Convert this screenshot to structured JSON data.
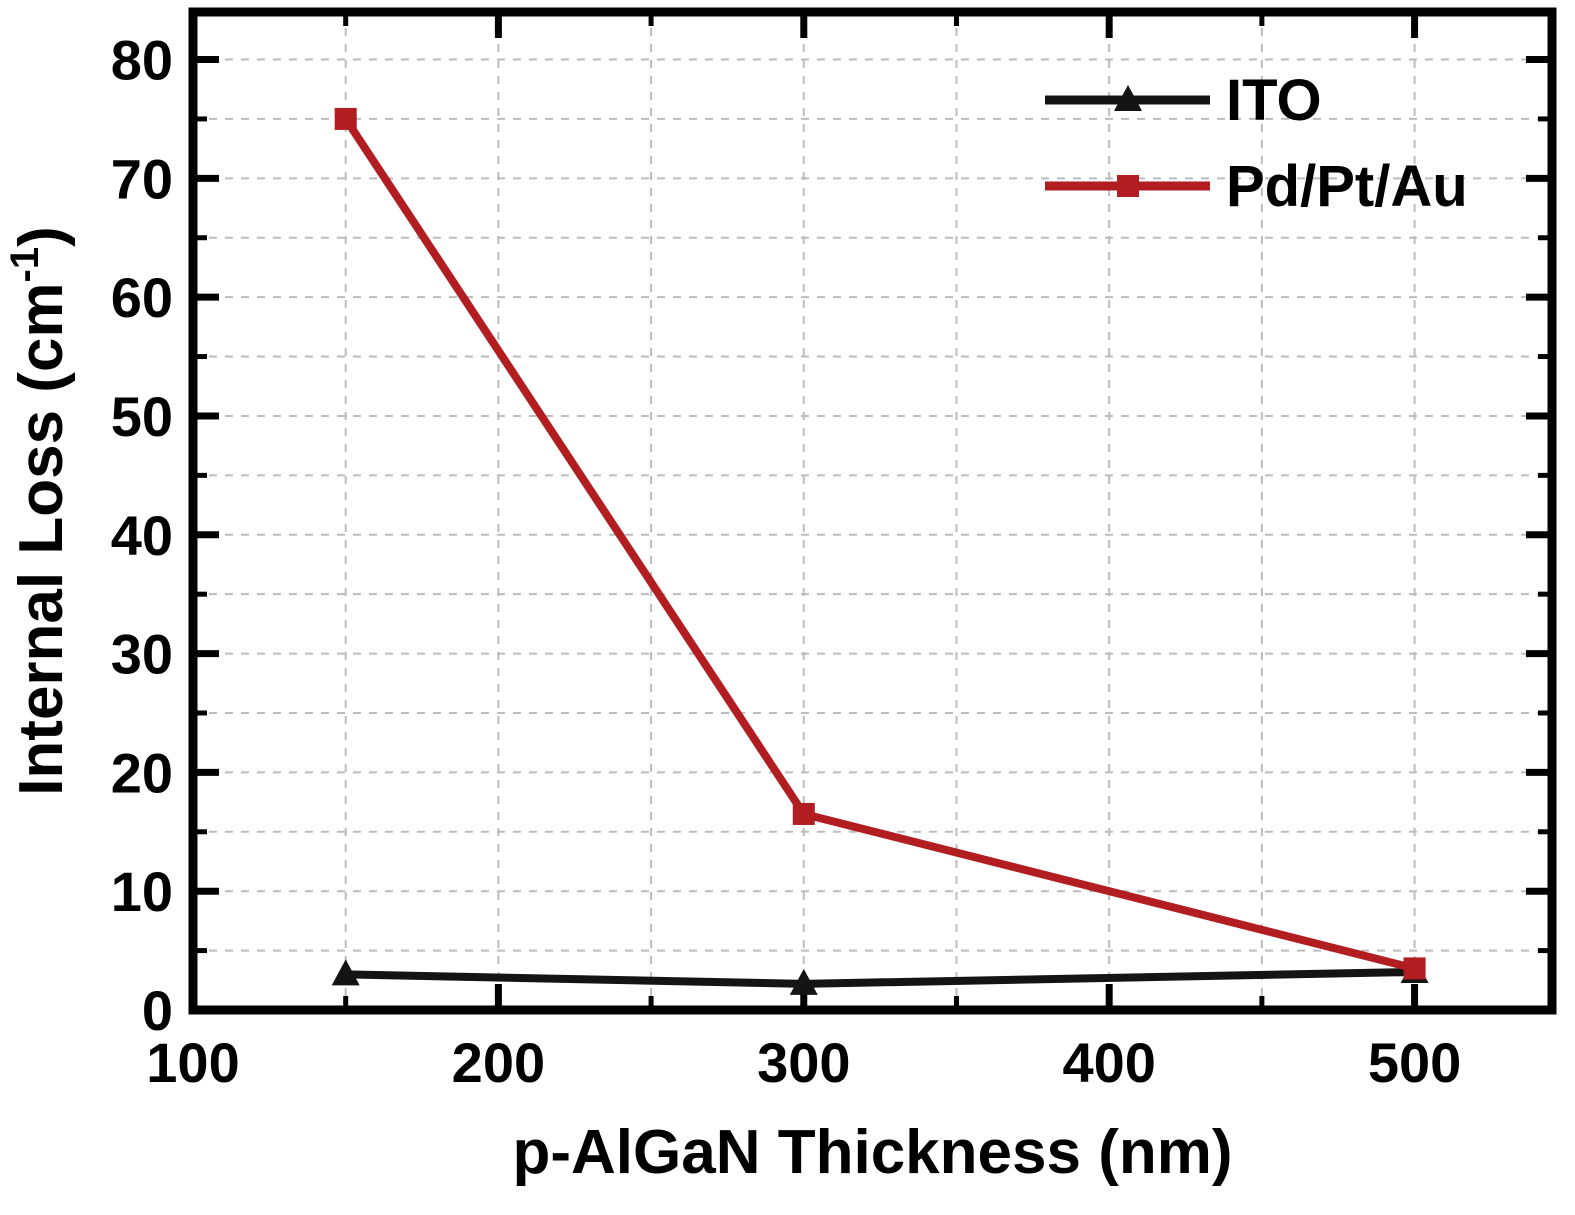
{
  "figure": {
    "background": "#ffffff"
  },
  "chart_data": {
    "type": "line",
    "title": "",
    "xlabel": "p-AlGaN Thickness (nm)",
    "ylabel": {
      "text": "Internal Loss (cm",
      "superscript": "-1",
      "suffix": ")"
    },
    "xlim": [
      100,
      545
    ],
    "ylim": [
      0,
      84
    ],
    "x_major_ticks": [
      100,
      200,
      300,
      400,
      500
    ],
    "x_minor_interval": 50,
    "y_major_ticks": [
      0,
      10,
      20,
      30,
      40,
      50,
      60,
      70,
      80
    ],
    "y_minor_interval": 5,
    "grid": {
      "show": true,
      "style": "dashed",
      "color": "#bcbcbc",
      "x_interval": 50,
      "y_interval": 5
    },
    "axis_color": "#000000",
    "series": [
      {
        "name": "ITO",
        "color": "#141414",
        "marker": "triangle",
        "x": [
          150,
          300,
          500
        ],
        "y": [
          3.0,
          2.2,
          3.2
        ]
      },
      {
        "name": "Pd/Pt/Au",
        "color": "#b21d21",
        "marker": "square",
        "x": [
          150,
          300,
          500
        ],
        "y": [
          75.0,
          16.5,
          3.5
        ]
      }
    ],
    "legend": {
      "position": "top-right",
      "labels": [
        "ITO",
        "Pd/Pt/Au"
      ]
    }
  }
}
